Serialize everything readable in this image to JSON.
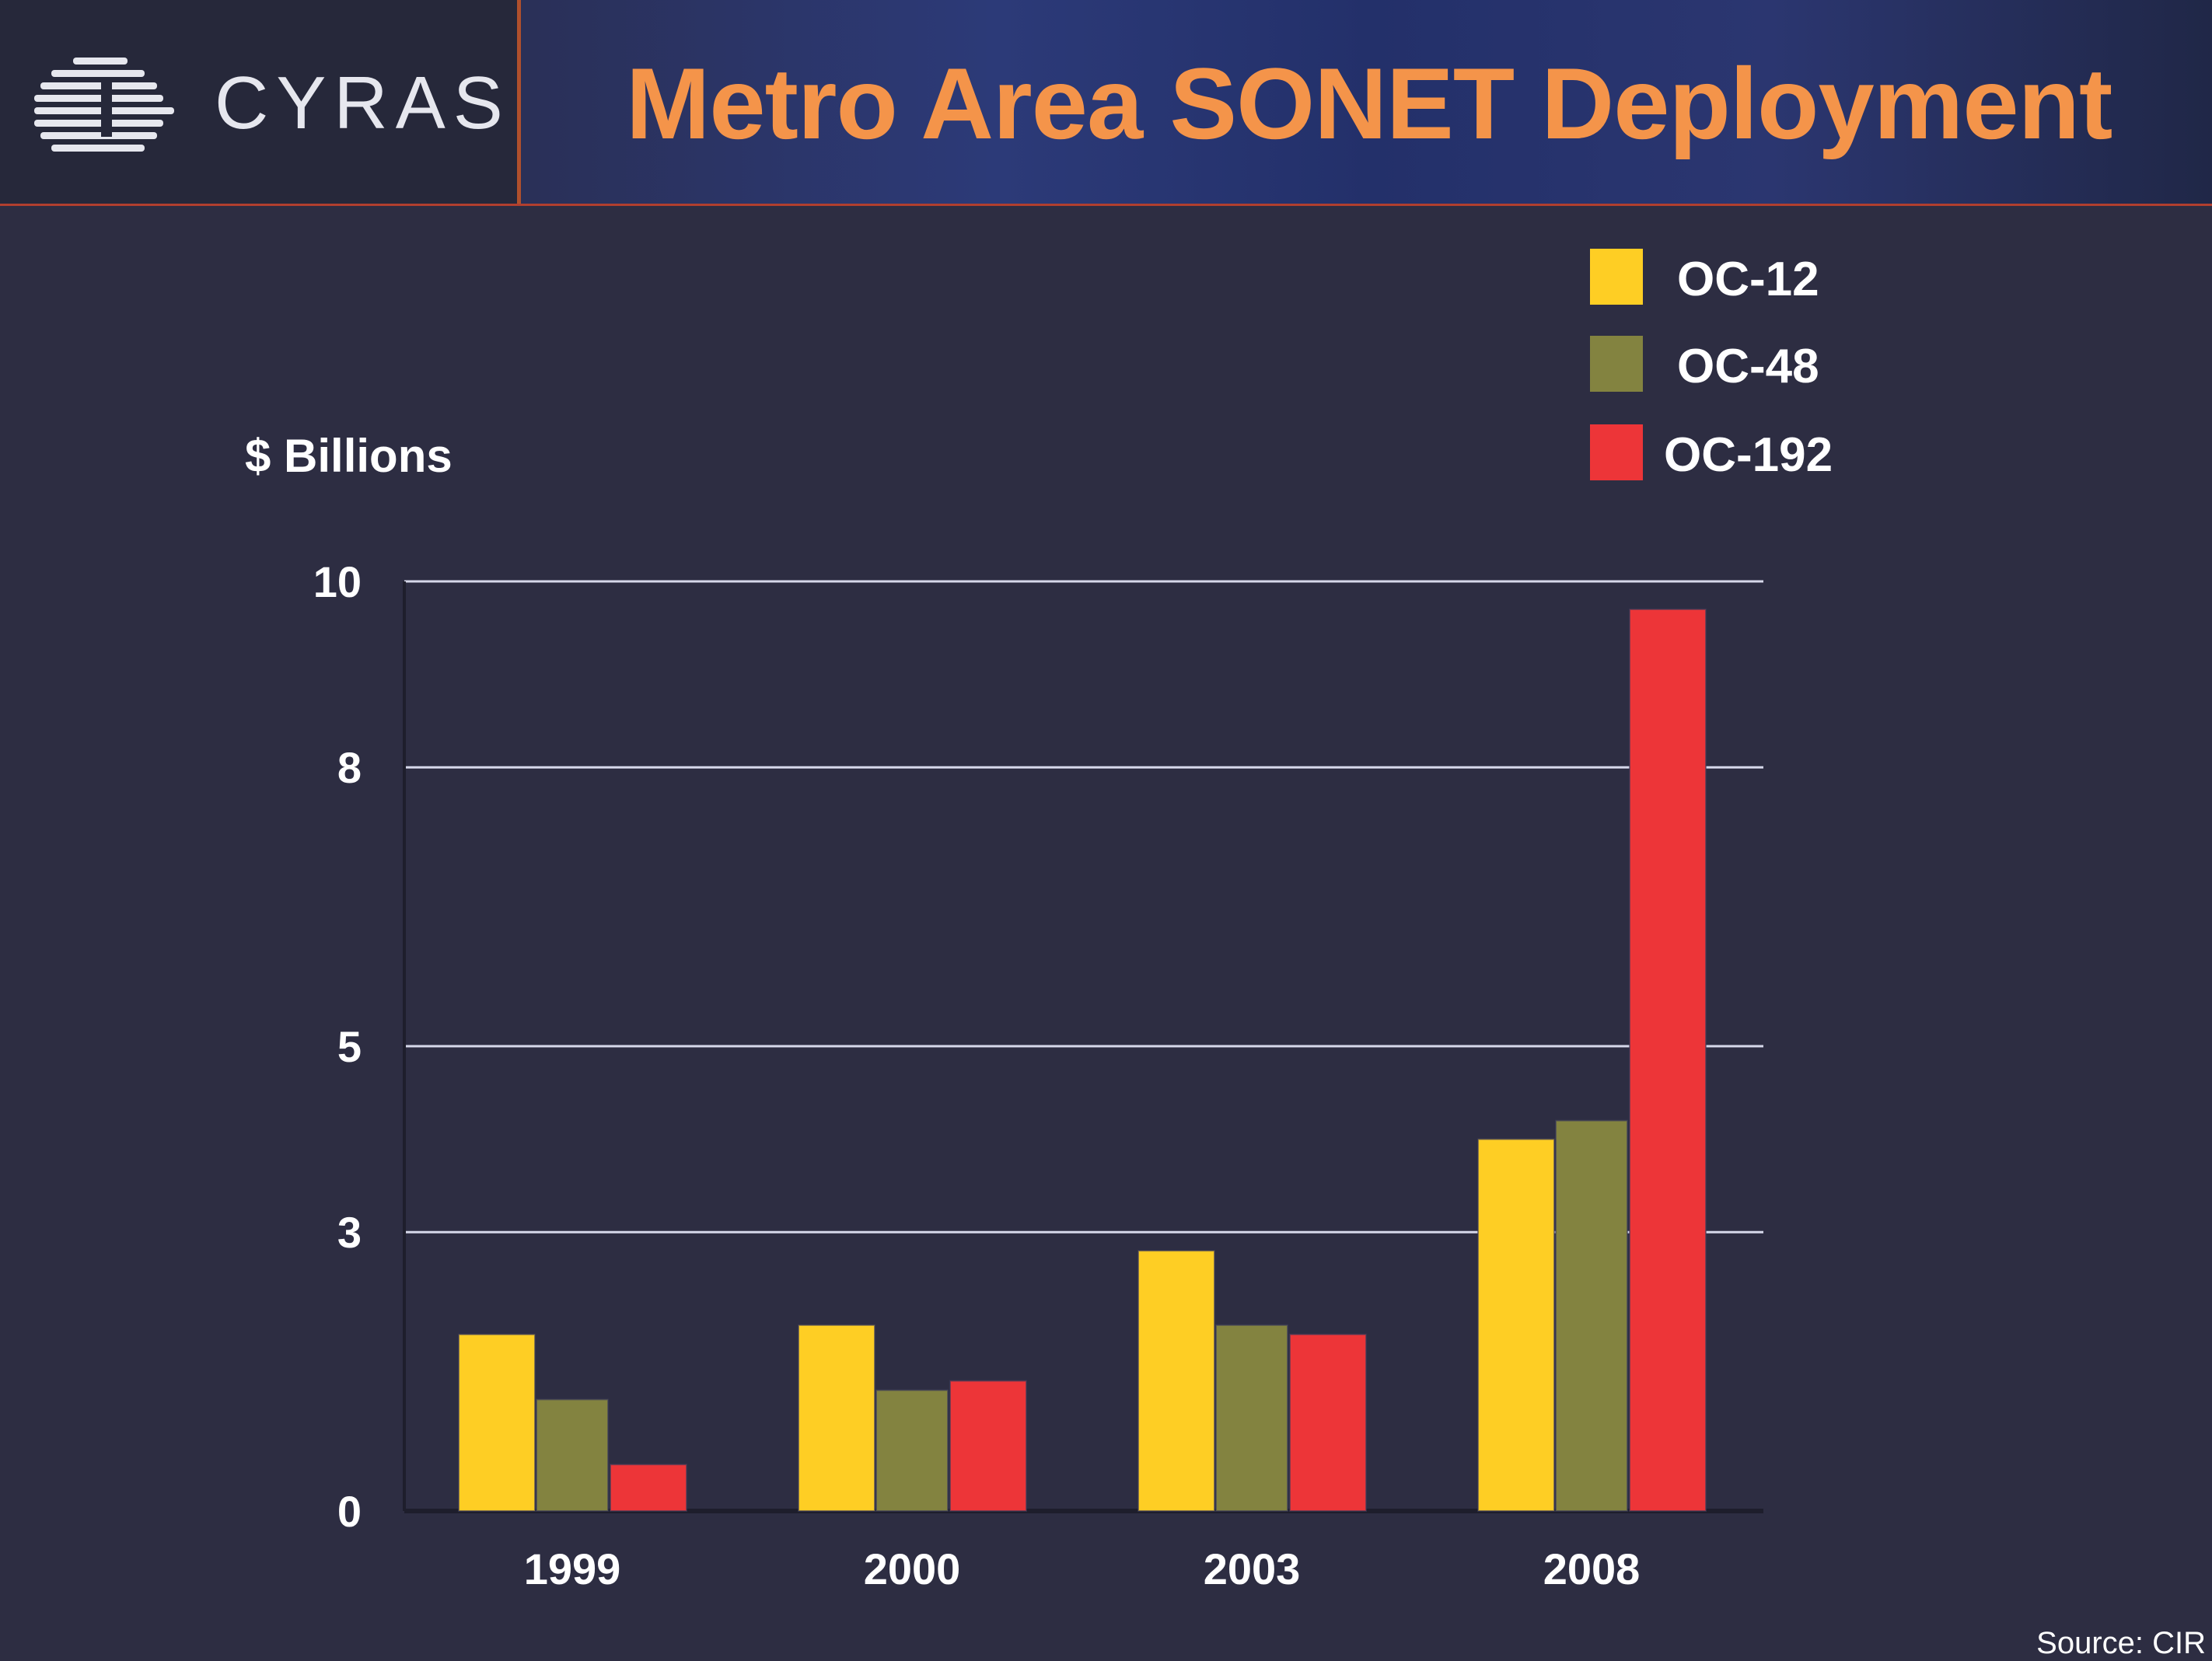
{
  "header": {
    "brand": "CYRAS",
    "title": "Metro Area SONET Deployment"
  },
  "source": "Source: CIR",
  "colors": {
    "OC-12": "#fece24",
    "OC-48": "#838340",
    "OC-192": "#ed3538",
    "background": "#2d2d42",
    "title": "#f4944a"
  },
  "chart_data": {
    "type": "bar",
    "title": "",
    "ylabel": "$ Billions",
    "xlabel": "",
    "categories": [
      "1999",
      "2000",
      "2003",
      "2008"
    ],
    "yticks": [
      0,
      3,
      5,
      8,
      10
    ],
    "ylim": [
      0,
      10
    ],
    "grid": true,
    "legend_position": "top-right",
    "series": [
      {
        "name": "OC-12",
        "values": [
          1.9,
          2.0,
          2.8,
          4.0
        ]
      },
      {
        "name": "OC-48",
        "values": [
          1.2,
          1.3,
          2.0,
          4.2
        ]
      },
      {
        "name": "OC-192",
        "values": [
          0.5,
          1.4,
          1.9,
          9.7
        ]
      }
    ]
  }
}
